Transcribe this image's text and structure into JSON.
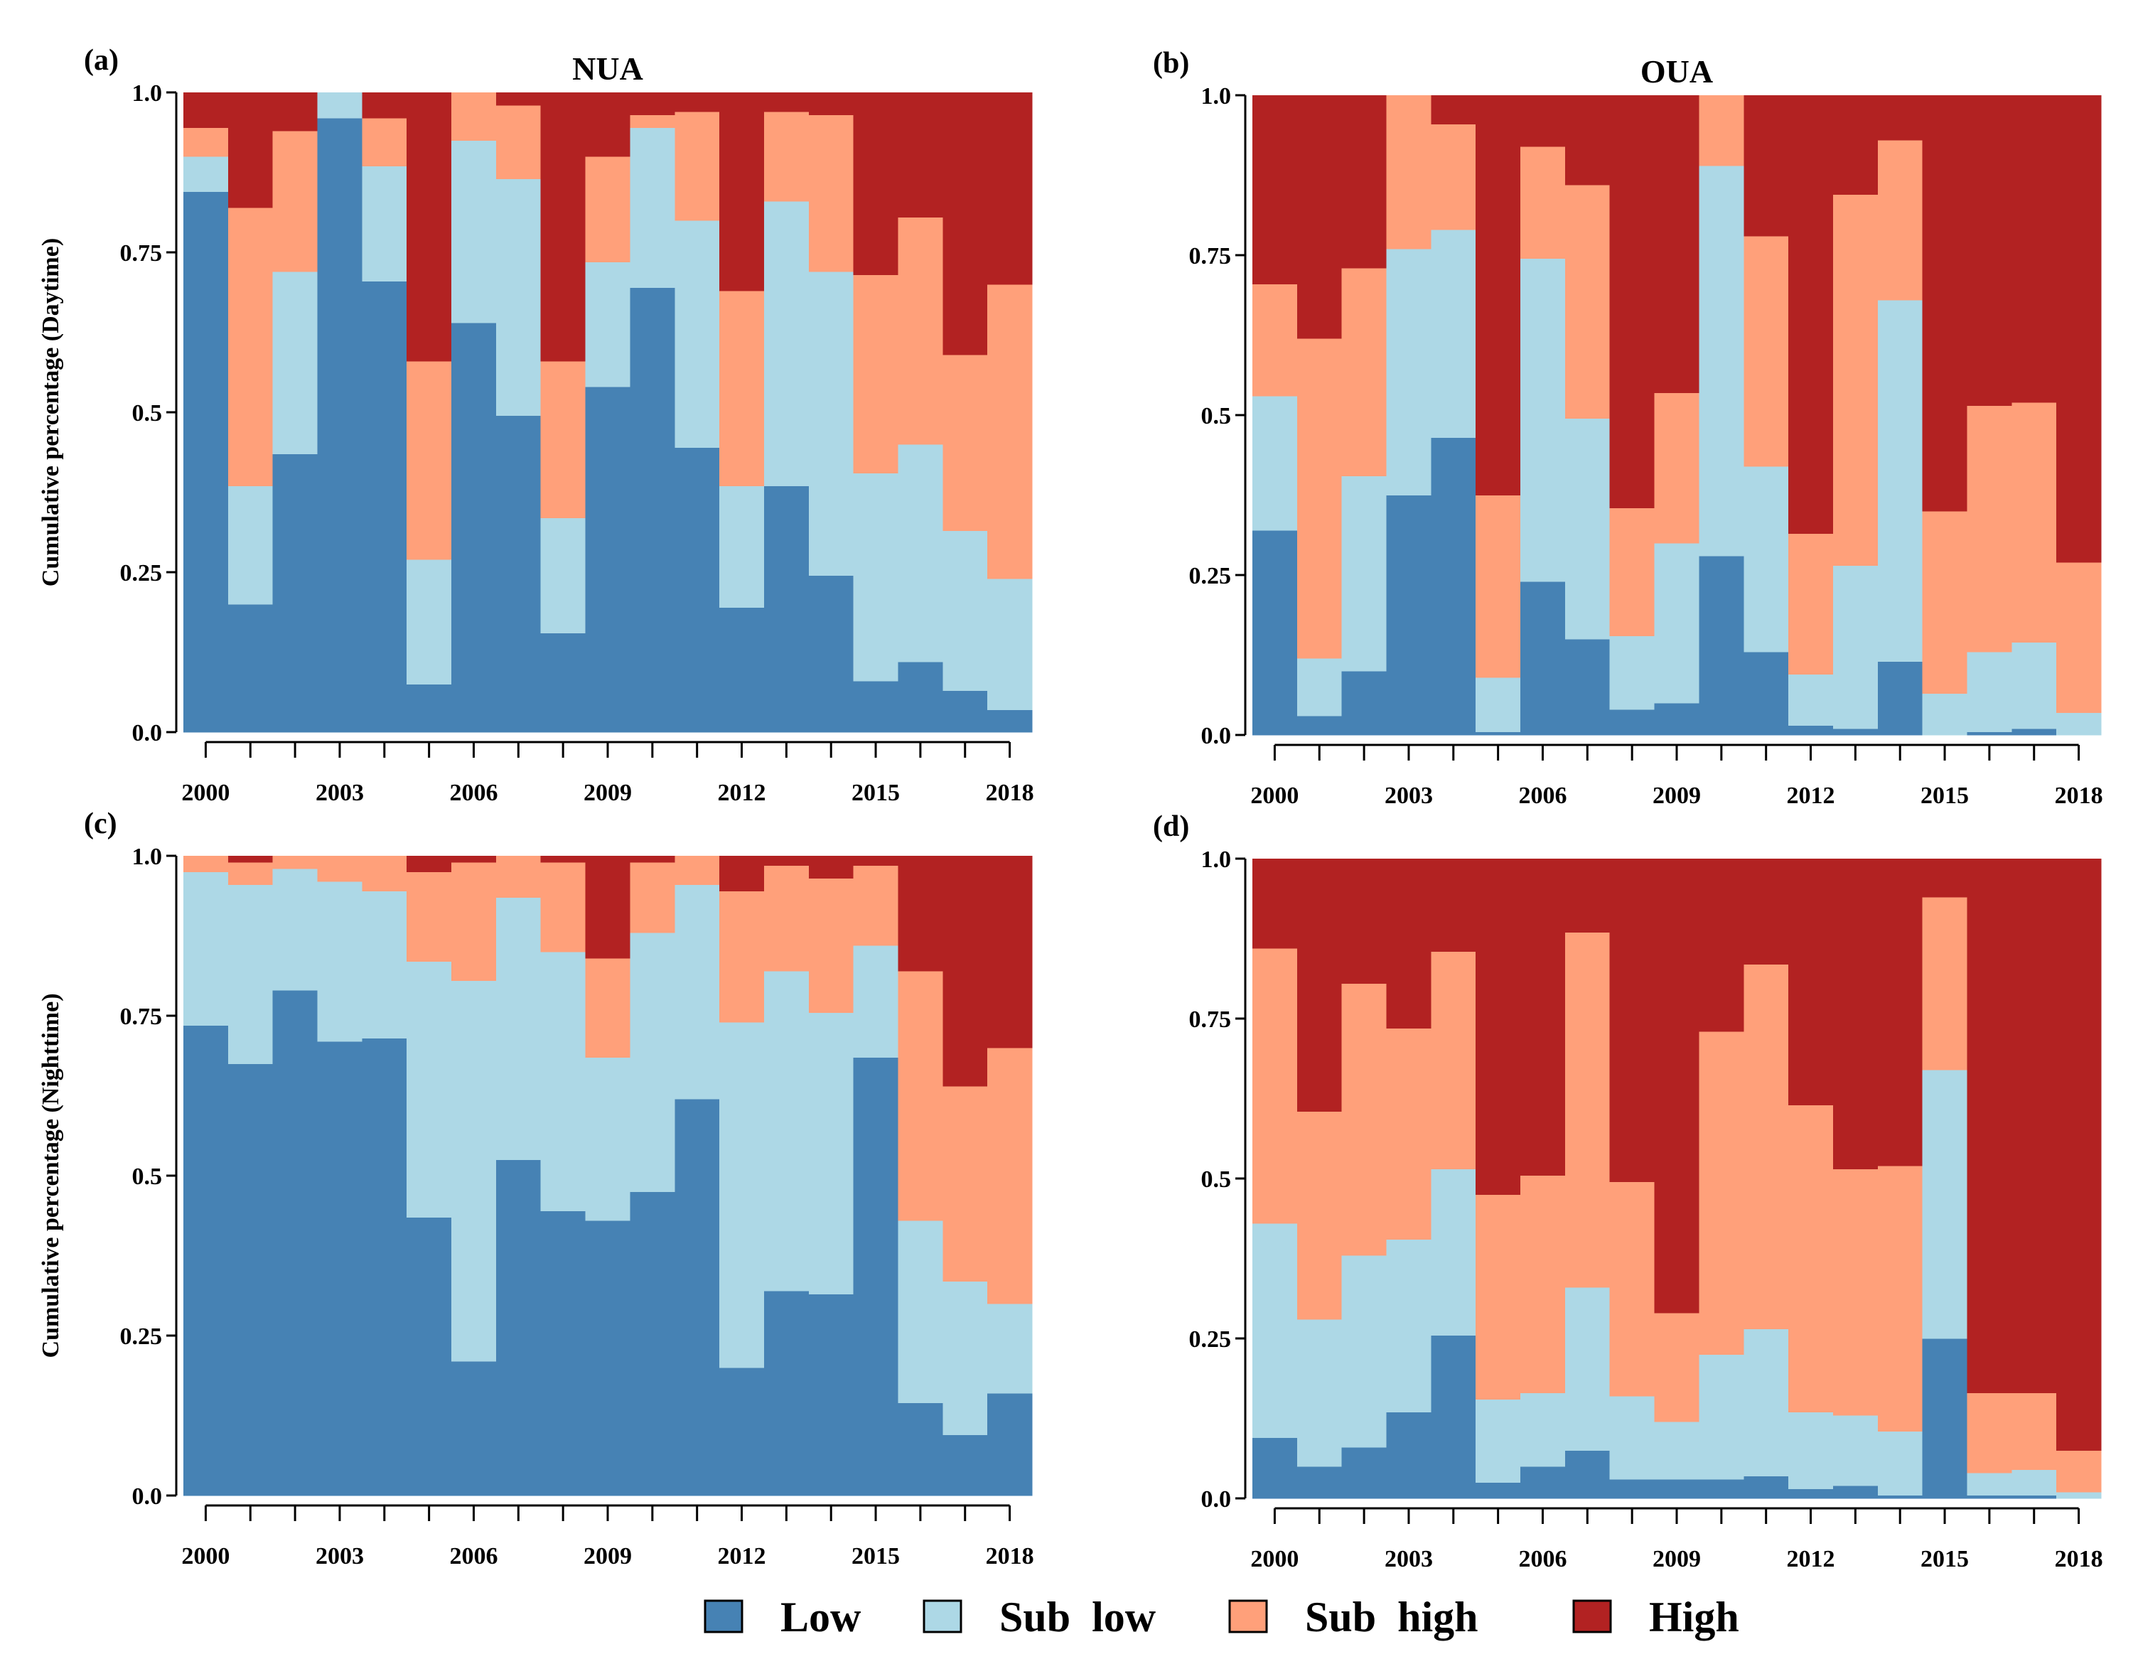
{
  "chart_data": {
    "type": "stacked-step-area",
    "categories_label": "Year",
    "years": [
      2000,
      2001,
      2002,
      2003,
      2004,
      2005,
      2006,
      2007,
      2008,
      2009,
      2010,
      2011,
      2012,
      2013,
      2014,
      2015,
      2016,
      2017,
      2018
    ],
    "x_ticks": [
      "2000",
      "2003",
      "2006",
      "2009",
      "2012",
      "2015",
      "2018"
    ],
    "y_ticks": [
      "0.0",
      "0.25",
      "0.5",
      "0.75",
      "1.0"
    ],
    "ylim": [
      0,
      1
    ],
    "legend": [
      {
        "key": "low",
        "label": "Low",
        "color": "#4682B4"
      },
      {
        "key": "sublow",
        "label": "Sub  low",
        "color": "#ADD8E6"
      },
      {
        "key": "subhigh",
        "label": "Sub  high",
        "color": "#FFA07A"
      },
      {
        "key": "high",
        "label": "High",
        "color": "#B22222"
      }
    ],
    "panels": [
      {
        "id": "a",
        "label": "(a)",
        "title": "NUA",
        "ylabel": "Cumulative percentage (Daytime)",
        "cumulative": {
          "low": [
            0.845,
            0.2,
            0.435,
            0.96,
            0.705,
            0.075,
            0.64,
            0.495,
            0.155,
            0.54,
            0.695,
            0.445,
            0.195,
            0.385,
            0.245,
            0.08,
            0.11,
            0.065,
            0.035
          ],
          "sublow": [
            0.9,
            0.385,
            0.72,
            1.0,
            0.885,
            0.27,
            0.925,
            0.865,
            0.335,
            0.735,
            0.945,
            0.8,
            0.385,
            0.83,
            0.72,
            0.405,
            0.45,
            0.315,
            0.24
          ],
          "subhigh": [
            0.945,
            0.82,
            0.94,
            1.0,
            0.96,
            0.58,
            1.0,
            0.98,
            0.58,
            0.9,
            0.965,
            0.97,
            0.69,
            0.97,
            0.965,
            0.715,
            0.805,
            0.59,
            0.7
          ]
        }
      },
      {
        "id": "b",
        "label": "(b)",
        "title": "OUA",
        "ylabel": "",
        "cumulative": {
          "low": [
            0.32,
            0.03,
            0.1,
            0.375,
            0.465,
            0.005,
            0.24,
            0.15,
            0.04,
            0.05,
            0.28,
            0.13,
            0.015,
            0.01,
            0.115,
            0.0,
            0.005,
            0.01,
            0.0
          ],
          "sublow": [
            0.53,
            0.12,
            0.405,
            0.76,
            0.79,
            0.09,
            0.745,
            0.495,
            0.155,
            0.3,
            0.89,
            0.42,
            0.095,
            0.265,
            0.68,
            0.065,
            0.13,
            0.145,
            0.035
          ],
          "subhigh": [
            0.705,
            0.62,
            0.73,
            1.0,
            0.955,
            0.375,
            0.92,
            0.86,
            0.355,
            0.535,
            1.0,
            0.78,
            0.315,
            0.845,
            0.93,
            0.35,
            0.515,
            0.52,
            0.27
          ]
        }
      },
      {
        "id": "c",
        "label": "(c)",
        "title": "",
        "ylabel": "Cumulative percentage (Nighttime)",
        "cumulative": {
          "low": [
            0.735,
            0.675,
            0.79,
            0.71,
            0.715,
            0.435,
            0.21,
            0.525,
            0.445,
            0.43,
            0.475,
            0.62,
            0.2,
            0.32,
            0.315,
            0.685,
            0.145,
            0.095,
            0.16
          ],
          "sublow": [
            0.975,
            0.955,
            0.98,
            0.96,
            0.945,
            0.835,
            0.805,
            0.935,
            0.85,
            0.685,
            0.88,
            0.955,
            0.74,
            0.82,
            0.755,
            0.86,
            0.43,
            0.335,
            0.3
          ],
          "subhigh": [
            1.0,
            0.99,
            1.0,
            1.0,
            1.0,
            0.975,
            0.99,
            1.0,
            0.99,
            0.84,
            0.99,
            1.0,
            0.945,
            0.985,
            0.965,
            0.985,
            0.82,
            0.64,
            0.7
          ]
        }
      },
      {
        "id": "d",
        "label": "(d)",
        "title": "",
        "ylabel": "",
        "cumulative": {
          "low": [
            0.095,
            0.05,
            0.08,
            0.135,
            0.255,
            0.025,
            0.05,
            0.075,
            0.03,
            0.03,
            0.03,
            0.035,
            0.015,
            0.02,
            0.005,
            0.25,
            0.005,
            0.005,
            0.0
          ],
          "sublow": [
            0.43,
            0.28,
            0.38,
            0.405,
            0.515,
            0.155,
            0.165,
            0.33,
            0.16,
            0.12,
            0.225,
            0.265,
            0.135,
            0.13,
            0.105,
            0.67,
            0.04,
            0.045,
            0.01
          ],
          "subhigh": [
            0.86,
            0.605,
            0.805,
            0.735,
            0.855,
            0.475,
            0.505,
            0.885,
            0.495,
            0.29,
            0.73,
            0.835,
            0.615,
            0.515,
            0.52,
            0.94,
            0.165,
            0.165,
            0.075
          ]
        }
      }
    ]
  }
}
